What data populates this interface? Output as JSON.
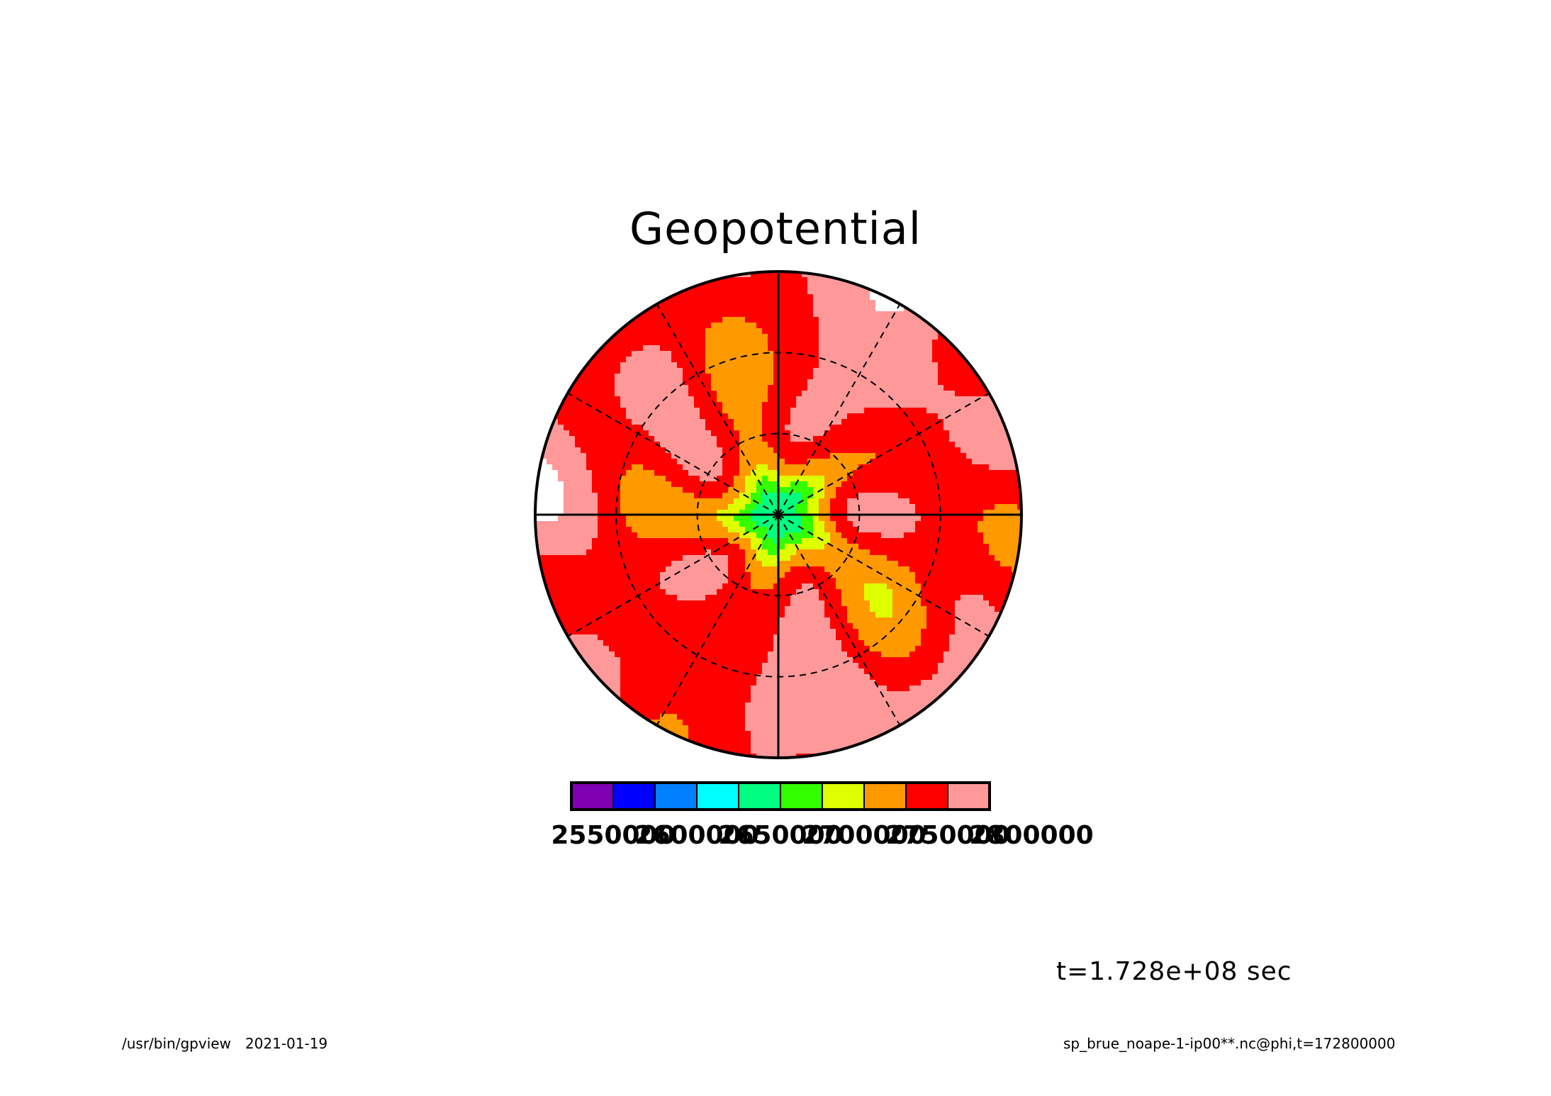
{
  "chart_data": {
    "type": "heatmap",
    "projection": "polar-stereographic",
    "title": "Geopotential",
    "variable": "phi",
    "time_label": "t=1.728e+08 sec",
    "colorbar": {
      "orientation": "horizontal",
      "levels": [
        "2550000",
        "2600000",
        "2650000",
        "2700000",
        "2750000",
        "2800000"
      ],
      "boundaries": [
        2550000,
        2575000,
        2600000,
        2625000,
        2650000,
        2675000,
        2700000,
        2725000,
        2750000,
        2775000,
        2800000
      ],
      "colors": [
        "#7f00b2",
        "#0000ff",
        "#0080ff",
        "#00ffff",
        "#00ff80",
        "#33ff00",
        "#ddff00",
        "#ff9900",
        "#ff0000",
        "#ff9999"
      ]
    },
    "max_color": "#ffffff",
    "grid": "dashed latitude circles and meridians every 30°",
    "field_description_levels_by_region": {
      "pole_center": 2650000,
      "inner_ring": 2725000,
      "outer_ring": 2775000
    }
  },
  "footer": {
    "program": "/usr/bin/gpview",
    "date": "2021-01-19",
    "source": "sp_brue_noape-1-ip00**.nc@phi,t=172800000"
  }
}
